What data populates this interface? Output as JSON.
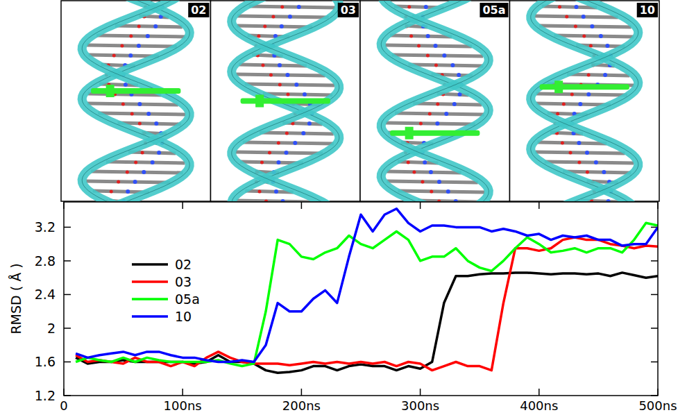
{
  "chart_data": {
    "type": "line",
    "y_label": "RMSD ( Å )",
    "x": [
      10,
      20,
      30,
      40,
      50,
      60,
      70,
      80,
      90,
      100,
      110,
      120,
      130,
      140,
      150,
      160,
      170,
      180,
      190,
      200,
      210,
      220,
      230,
      240,
      250,
      260,
      270,
      280,
      290,
      300,
      310,
      320,
      330,
      340,
      350,
      360,
      370,
      380,
      390,
      400,
      410,
      420,
      430,
      440,
      450,
      460,
      470,
      480,
      490,
      500
    ],
    "series": [
      {
        "name": "02",
        "color": "#000000",
        "values": [
          1.65,
          1.58,
          1.6,
          1.6,
          1.62,
          1.6,
          1.6,
          1.6,
          1.6,
          1.6,
          1.58,
          1.6,
          1.68,
          1.6,
          1.6,
          1.58,
          1.5,
          1.47,
          1.48,
          1.5,
          1.55,
          1.55,
          1.5,
          1.55,
          1.57,
          1.55,
          1.55,
          1.5,
          1.55,
          1.52,
          1.6,
          2.3,
          2.62,
          2.62,
          2.64,
          2.65,
          2.65,
          2.66,
          2.66,
          2.65,
          2.64,
          2.65,
          2.65,
          2.64,
          2.65,
          2.62,
          2.66,
          2.63,
          2.6,
          2.62
        ]
      },
      {
        "name": "03",
        "color": "#ff0000",
        "values": [
          1.68,
          1.6,
          1.62,
          1.6,
          1.58,
          1.65,
          1.6,
          1.6,
          1.55,
          1.6,
          1.55,
          1.65,
          1.72,
          1.65,
          1.6,
          1.58,
          1.58,
          1.58,
          1.56,
          1.58,
          1.6,
          1.58,
          1.6,
          1.58,
          1.6,
          1.58,
          1.6,
          1.55,
          1.6,
          1.58,
          1.5,
          1.55,
          1.6,
          1.55,
          1.55,
          1.5,
          2.3,
          2.95,
          2.95,
          2.92,
          2.95,
          3.05,
          3.08,
          3.05,
          3.05,
          3.0,
          2.98,
          2.95,
          2.98,
          2.97
        ]
      },
      {
        "name": "05a",
        "color": "#00ff00",
        "values": [
          1.6,
          1.65,
          1.62,
          1.6,
          1.65,
          1.6,
          1.65,
          1.62,
          1.6,
          1.6,
          1.6,
          1.6,
          1.62,
          1.58,
          1.55,
          1.58,
          2.2,
          3.05,
          3.0,
          2.85,
          2.82,
          2.9,
          2.95,
          3.1,
          3.0,
          2.95,
          3.05,
          3.15,
          3.05,
          2.8,
          2.85,
          2.85,
          2.95,
          2.8,
          2.72,
          2.68,
          2.8,
          2.95,
          3.08,
          3.0,
          2.9,
          2.92,
          2.95,
          2.9,
          2.95,
          2.95,
          2.9,
          3.05,
          3.25,
          3.22
        ]
      },
      {
        "name": "10",
        "color": "#0000ff",
        "values": [
          1.7,
          1.65,
          1.68,
          1.7,
          1.72,
          1.68,
          1.72,
          1.72,
          1.68,
          1.65,
          1.65,
          1.62,
          1.6,
          1.6,
          1.62,
          1.6,
          1.8,
          2.3,
          2.2,
          2.2,
          2.35,
          2.45,
          2.3,
          2.85,
          3.35,
          3.15,
          3.35,
          3.42,
          3.25,
          3.15,
          3.22,
          3.22,
          3.2,
          3.2,
          3.2,
          3.15,
          3.18,
          3.15,
          3.1,
          3.12,
          3.05,
          3.1,
          3.08,
          3.1,
          3.05,
          3.05,
          2.98,
          3.0,
          3.0,
          3.2
        ]
      }
    ],
    "xlim": [
      0,
      500
    ],
    "xticks": [
      0,
      {
        "value": 100,
        "label": "100ns"
      },
      {
        "value": 200,
        "label": "200ns"
      },
      {
        "value": 300,
        "label": "300ns"
      },
      {
        "value": 400,
        "label": "400ns"
      },
      {
        "value": 500,
        "label": "500ns"
      }
    ],
    "ylim": [
      1.2,
      3.5
    ],
    "yticks": [
      1.2,
      1.6,
      2,
      2.4,
      2.8,
      3.2
    ],
    "legend": "left",
    "grid": false
  },
  "panels": [
    {
      "label": "02"
    },
    {
      "label": "03"
    },
    {
      "label": "05a"
    },
    {
      "label": "10"
    }
  ]
}
